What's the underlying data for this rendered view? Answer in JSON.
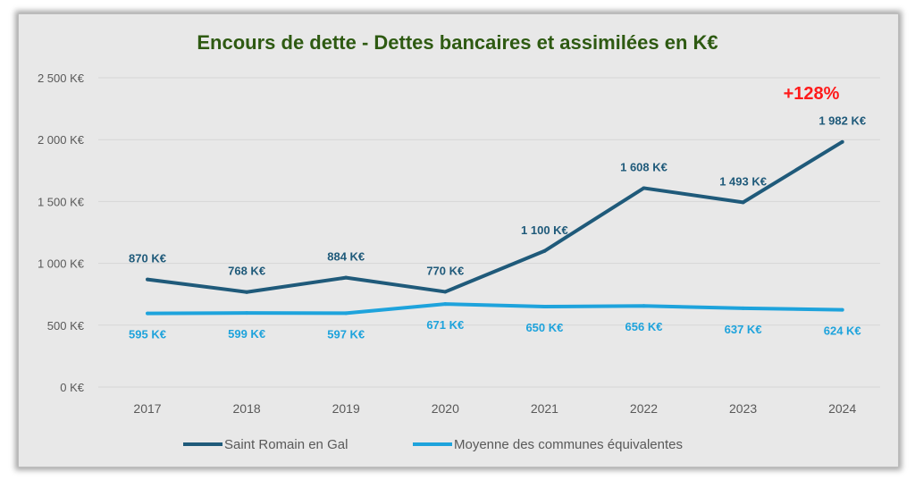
{
  "chart_data": {
    "type": "line",
    "title": "Encours de dette - Dettes bancaires et assimilées en K€",
    "annotation": "+128%",
    "xlabel": "",
    "ylabel": "",
    "ylim": [
      0,
      2500
    ],
    "yticks": [
      0,
      500,
      1000,
      1500,
      2000,
      2500
    ],
    "ytick_labels": [
      "0 K€",
      "500 K€",
      "1 000 K€",
      "1 500 K€",
      "2 000 K€",
      "2 500 K€"
    ],
    "grid": true,
    "legend_position": "bottom",
    "categories": [
      "2017",
      "2018",
      "2019",
      "2020",
      "2021",
      "2022",
      "2023",
      "2024"
    ],
    "series": [
      {
        "name": "Saint Romain en Gal",
        "color": "#1f5a7a",
        "values": [
          870,
          768,
          884,
          770,
          1100,
          1608,
          1493,
          1982
        ],
        "labels": [
          "870 K€",
          "768 K€",
          "884 K€",
          "770 K€",
          "1 100 K€",
          "1 608 K€",
          "1 493 K€",
          "1 982 K€"
        ]
      },
      {
        "name": "Moyenne des communes équivalentes",
        "color": "#1ea3dc",
        "values": [
          595,
          599,
          597,
          671,
          650,
          656,
          637,
          624
        ],
        "labels": [
          "595 K€",
          "599 K€",
          "597 K€",
          "671 K€",
          "650 K€",
          "656 K€",
          "637 K€",
          "624 K€"
        ]
      }
    ]
  },
  "colors": {
    "title": "#2e5a12",
    "annotation": "#ff1a1a",
    "axis_text": "#595959",
    "grid": "#d6d6d6"
  }
}
